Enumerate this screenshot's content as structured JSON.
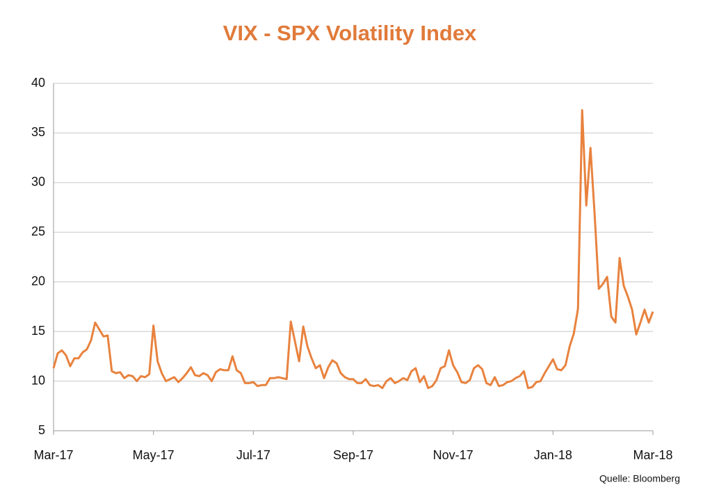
{
  "chart_data": {
    "type": "line",
    "title": "VIX - SPX Volatility Index",
    "source": "Quelle: Bloomberg",
    "categories": [
      "Mar-17",
      null,
      null,
      null,
      null,
      null,
      null,
      null,
      null,
      null,
      null,
      null,
      null,
      null,
      null,
      null,
      null,
      null,
      null,
      null,
      null,
      null,
      null,
      null,
      "May-17",
      null,
      null,
      null,
      null,
      null,
      null,
      null,
      null,
      null,
      null,
      null,
      null,
      null,
      null,
      null,
      null,
      null,
      null,
      null,
      null,
      null,
      null,
      null,
      "Jul-17",
      null,
      null,
      null,
      null,
      null,
      null,
      null,
      null,
      null,
      null,
      null,
      null,
      null,
      null,
      null,
      null,
      null,
      null,
      null,
      null,
      null,
      null,
      null,
      "Sep-17",
      null,
      null,
      null,
      null,
      null,
      null,
      null,
      null,
      null,
      null,
      null,
      null,
      null,
      null,
      null,
      null,
      null,
      null,
      null,
      null,
      null,
      null,
      null,
      "Nov-17",
      null,
      null,
      null,
      null,
      null,
      null,
      null,
      null,
      null,
      null,
      null,
      null,
      null,
      null,
      null,
      null,
      null,
      null,
      null,
      null,
      null,
      null,
      null,
      "Jan-18",
      null,
      null,
      null,
      null,
      null,
      null,
      null,
      null,
      null,
      null,
      null,
      null,
      null,
      null,
      null,
      null,
      null,
      null,
      null,
      null,
      null,
      null,
      null,
      "Mar-18"
    ],
    "values": [
      11.3,
      12.8,
      13.1,
      12.6,
      11.5,
      12.3,
      12.3,
      12.9,
      13.2,
      14.1,
      15.9,
      15.2,
      14.5,
      14.6,
      11.0,
      10.8,
      10.9,
      10.3,
      10.6,
      10.5,
      10.0,
      10.5,
      10.4,
      10.7,
      15.6,
      12.0,
      10.8,
      10.0,
      10.2,
      10.4,
      9.9,
      10.3,
      10.8,
      11.4,
      10.6,
      10.5,
      10.8,
      10.6,
      10.0,
      10.9,
      11.2,
      11.1,
      11.1,
      12.5,
      11.1,
      10.8,
      9.8,
      9.8,
      9.9,
      9.5,
      9.6,
      9.6,
      10.3,
      10.3,
      10.4,
      10.3,
      10.2,
      16.0,
      14.0,
      12.0,
      15.5,
      13.5,
      12.3,
      11.3,
      11.6,
      10.3,
      11.4,
      12.1,
      11.8,
      10.8,
      10.4,
      10.2,
      10.2,
      9.8,
      9.8,
      10.2,
      9.6,
      9.5,
      9.6,
      9.3,
      10.0,
      10.3,
      9.8,
      10.0,
      10.3,
      10.1,
      11.0,
      11.3,
      9.9,
      10.5,
      9.3,
      9.5,
      10.1,
      11.3,
      11.5,
      13.1,
      11.6,
      10.9,
      9.9,
      9.8,
      10.1,
      11.3,
      11.6,
      11.2,
      9.8,
      9.6,
      10.4,
      9.5,
      9.6,
      9.9,
      10.0,
      10.3,
      10.5,
      11.0,
      9.3,
      9.4,
      9.9,
      10.0,
      10.8,
      11.5,
      12.2,
      11.2,
      11.1,
      11.6,
      13.5,
      14.8,
      17.3,
      37.3,
      27.7,
      33.5,
      26.8,
      19.3,
      19.8,
      20.5,
      16.5,
      15.9,
      22.4,
      19.6,
      18.5,
      17.2,
      14.7,
      15.9,
      17.2,
      15.9,
      17.0
    ],
    "color": "#e8823e",
    "ylim": [
      5,
      40
    ],
    "yticks": [
      5,
      10,
      15,
      20,
      25,
      30,
      35,
      40
    ],
    "grid": true
  }
}
